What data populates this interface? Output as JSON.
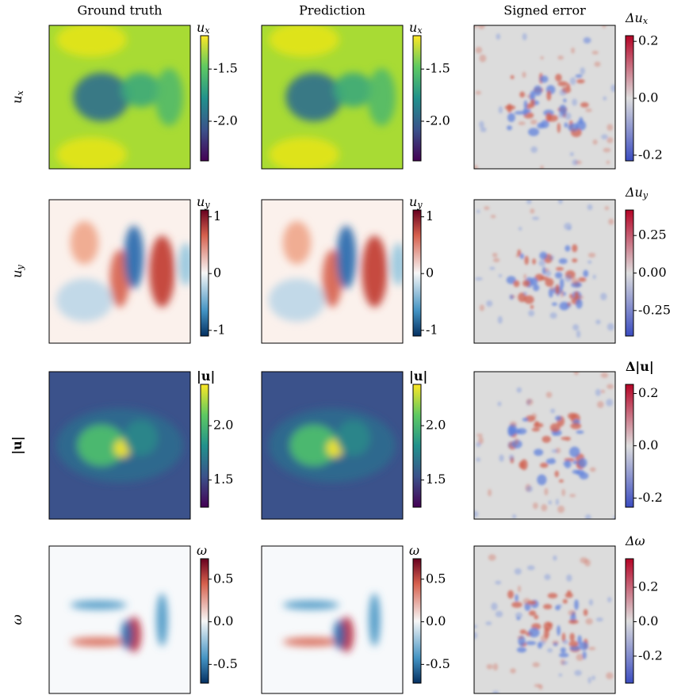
{
  "columns": [
    "Ground truth",
    "Prediction",
    "Signed error"
  ],
  "rows": [
    {
      "label": {
        "text": "u",
        "sub": "x"
      },
      "colorbars": [
        {
          "label": {
            "text": "u",
            "sub": "x"
          },
          "colormap": "viridis",
          "lim": [
            -2.38,
            -1.18
          ],
          "ticks": [
            -1.5,
            {
              "value": -2,
              "label": "-2.0"
            }
          ]
        },
        {
          "label": {
            "text": "Δu",
            "sub": "x"
          },
          "colormap": "coolwarm",
          "lim": [
            -0.22,
            0.22
          ],
          "ticks": [
            0.2,
            {
              "value": 0,
              "label": "0.0"
            },
            -0.2
          ]
        }
      ]
    },
    {
      "label": {
        "text": "u",
        "sub": "y"
      },
      "colorbars": [
        {
          "label": {
            "text": "u",
            "sub": "y"
          },
          "colormap": "RdBu",
          "lim": [
            -1.1,
            1.12
          ],
          "ticks": [
            1,
            0,
            -1
          ]
        },
        {
          "label": {
            "text": "Δu",
            "sub": "y"
          },
          "colormap": "coolwarm",
          "lim": [
            -0.42,
            0.42
          ],
          "ticks": [
            0.25,
            {
              "value": 0,
              "label": "0.00"
            },
            -0.25
          ]
        }
      ]
    },
    {
      "label": {
        "text": "|u|",
        "bold": true
      },
      "colorbars": [
        {
          "label": {
            "text": "|u|",
            "bold": true
          },
          "colormap": "viridis",
          "lim": [
            1.25,
            2.38
          ],
          "ticks": [
            {
              "value": 2,
              "label": "2.0"
            },
            1.5
          ]
        },
        {
          "label": {
            "text": "Δ|u|",
            "bold": true
          },
          "colormap": "coolwarm",
          "lim": [
            -0.235,
            0.235
          ],
          "ticks": [
            0.2,
            {
              "value": 0,
              "label": "0.0"
            },
            -0.2
          ]
        }
      ]
    },
    {
      "label": {
        "text": "ω"
      },
      "colorbars": [
        {
          "label": {
            "text": "ω"
          },
          "colormap": "RdBu",
          "lim": [
            -0.72,
            0.74
          ],
          "ticks": [
            0.5,
            {
              "value": 0,
              "label": "0.0"
            },
            -0.5
          ]
        },
        {
          "label": {
            "text": "Δω"
          },
          "colormap": "coolwarm",
          "lim": [
            -0.357,
            0.366
          ],
          "ticks": [
            0.2,
            {
              "value": 0,
              "label": "0.0"
            },
            -0.2
          ]
        }
      ]
    }
  ]
}
